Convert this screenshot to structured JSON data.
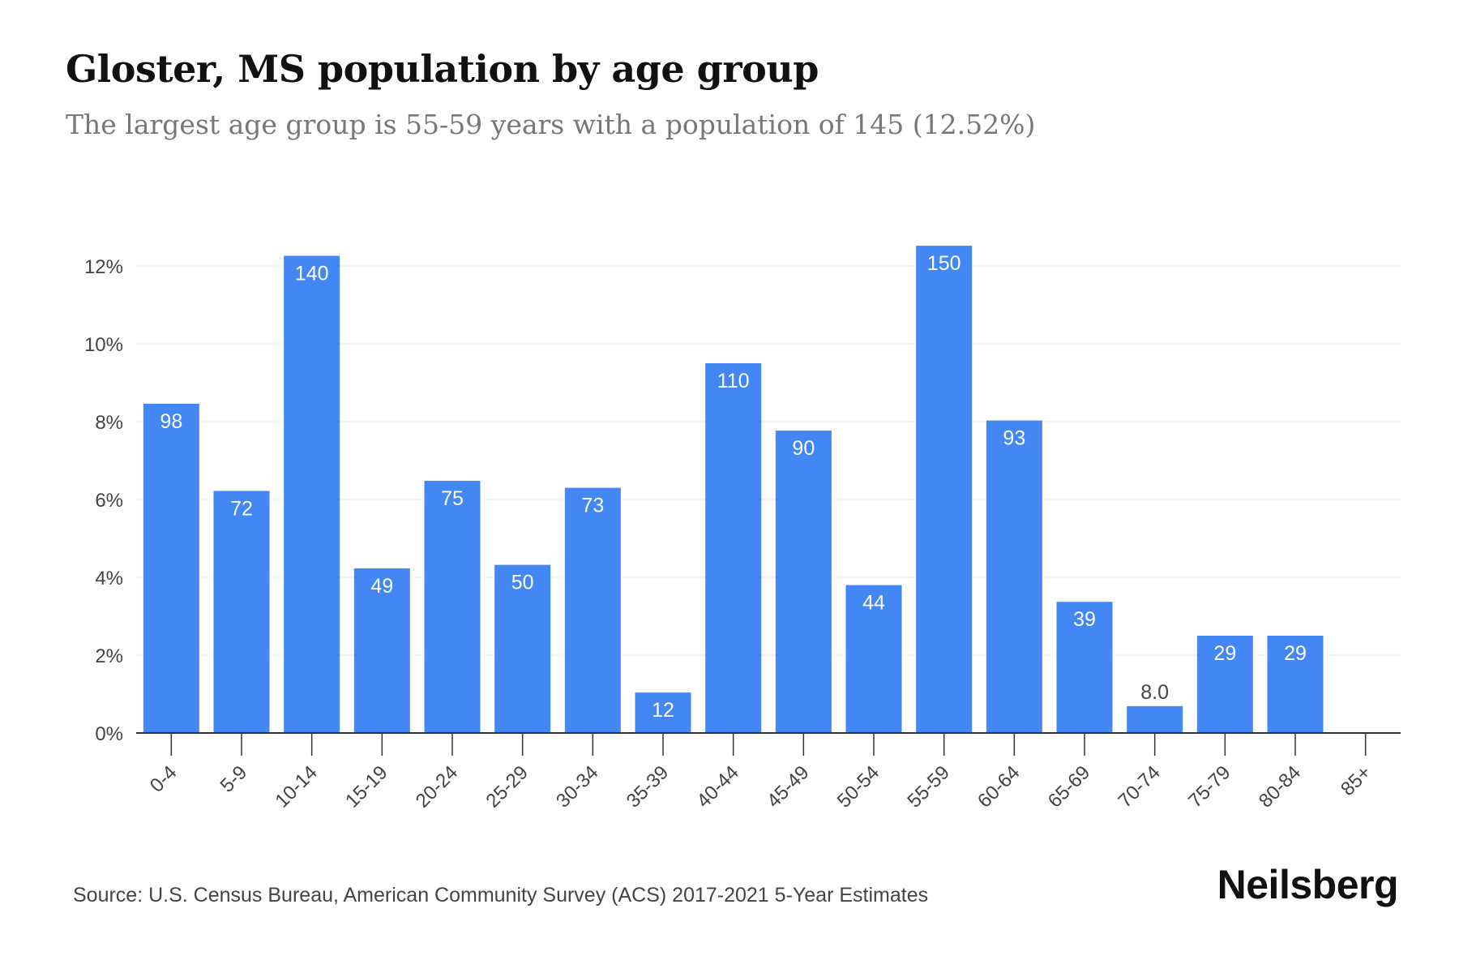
{
  "header": {
    "title": "Gloster, MS population by age group",
    "subtitle": "The largest age group is 55-59 years with a population of 145 (12.52%)"
  },
  "footer": {
    "source": "Source: U.S. Census Bureau, American Community Survey (ACS) 2017-2021 5-Year Estimates",
    "brand": "Neilsberg"
  },
  "colors": {
    "bar": "#4387f5",
    "label_inside": "#ffffff",
    "label_outside": "#444444",
    "grid": "#eeeeee",
    "axis": "#333333"
  },
  "chart_data": {
    "type": "bar",
    "categories": [
      "0-4",
      "5-9",
      "10-14",
      "15-19",
      "20-24",
      "25-29",
      "30-34",
      "35-39",
      "40-44",
      "45-49",
      "50-54",
      "55-59",
      "60-64",
      "65-69",
      "70-74",
      "75-79",
      "80-84",
      "85+"
    ],
    "values": [
      8.46,
      6.22,
      12.26,
      4.23,
      6.48,
      4.32,
      6.3,
      1.04,
      9.5,
      7.77,
      3.8,
      12.52,
      8.03,
      3.37,
      0.69,
      2.5,
      2.5,
      0
    ],
    "data_labels": [
      "98",
      "72",
      "140",
      "49",
      "75",
      "50",
      "73",
      "12",
      "110",
      "90",
      "44",
      "150",
      "93",
      "39",
      "8.0",
      "29",
      "29",
      ""
    ],
    "yticks": [
      "0%",
      "2%",
      "4%",
      "6%",
      "8%",
      "10%",
      "12%"
    ],
    "ylim": [
      0,
      12.5
    ],
    "xlabel": "",
    "ylabel": "",
    "grid": true,
    "legend": "none"
  }
}
